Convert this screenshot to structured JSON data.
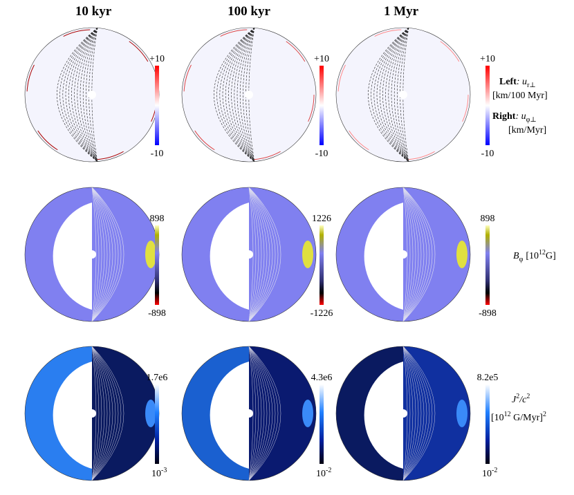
{
  "columns": [
    "10 kyr",
    "100 kyr",
    "1 Myr"
  ],
  "rows": [
    {
      "colorbars": [
        {
          "max": "+10",
          "min": "-10"
        },
        {
          "max": "+10",
          "min": "-10"
        },
        {
          "max": "+10",
          "min": "-10"
        }
      ],
      "label": {
        "left_bold": "Left",
        "left_sym": ": u",
        "left_sub": "r⊥",
        "left_unit": "[km/100 Myr]",
        "right_bold": "Right",
        "right_sym": ": u",
        "right_sub": "φ⊥",
        "right_unit": "[km/Myr]"
      }
    },
    {
      "colorbars": [
        {
          "max": "898",
          "min": "-898"
        },
        {
          "max": "1226",
          "min": "-1226"
        },
        {
          "max": "898",
          "min": "-898"
        }
      ],
      "label": {
        "sym": "B",
        "sub": "φ",
        "unit_open": "[10",
        "unit_exp": "12",
        "unit_close": "G]"
      }
    },
    {
      "colorbars": [
        {
          "max": "1.7e6",
          "min_base": "10",
          "min_exp": "-3"
        },
        {
          "max": "4.3e6",
          "min_base": "10",
          "min_exp": "-2"
        },
        {
          "max": "8.2e5",
          "min_base": "10",
          "min_exp": "-2"
        }
      ],
      "label": {
        "sym": "J",
        "sym_exp": "2",
        "slash": "/c",
        "slash_exp": "2",
        "unit_open": "[10",
        "unit_exp": "12",
        "unit_close": " G/Myr]",
        "unit_exp2": "2"
      }
    }
  ]
}
